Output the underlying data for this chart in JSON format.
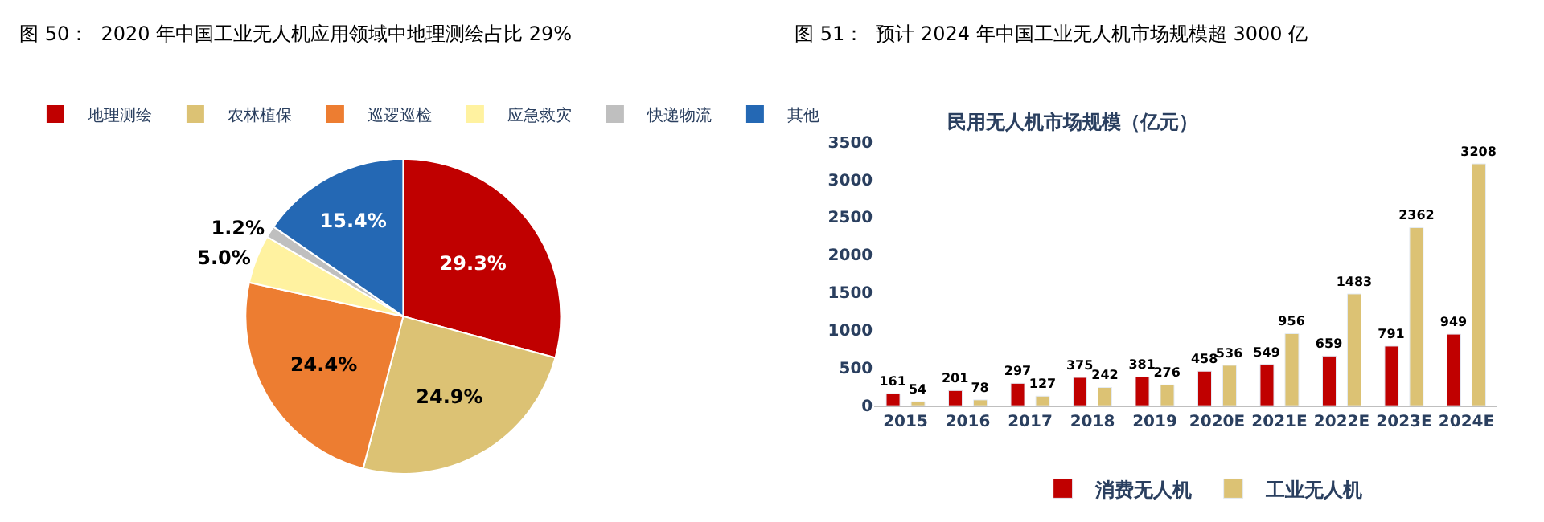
{
  "chart_data": [
    {
      "type": "pie",
      "title": "图 50：  2020 年中国工业无人机应用领域中地理测绘占比 29%",
      "categories": [
        "地理测绘",
        "农林植保",
        "巡逻巡检",
        "应急救灾",
        "快递物流",
        "其他"
      ],
      "values": [
        29.3,
        24.9,
        24.4,
        5.0,
        1.2,
        15.4
      ],
      "colors": [
        "#c00000",
        "#dcc274",
        "#ed7d31",
        "#fff2a0",
        "#bfbfbf",
        "#2468b4"
      ],
      "value_labels": [
        "29.3%",
        "24.9%",
        "24.4%",
        "5.0%",
        "1.2%",
        "15.4%"
      ],
      "legend": "top"
    },
    {
      "type": "bar",
      "title": "图 51：  预计 2024 年中国工业无人机市场规模超 3000 亿",
      "subtitle": "民用无人机市场规模（亿元）",
      "categories": [
        "2015",
        "2016",
        "2017",
        "2018",
        "2019",
        "2020E",
        "2021E",
        "2022E",
        "2023E",
        "2024E"
      ],
      "series": [
        {
          "name": "消费无人机",
          "color": "#c00000",
          "values": [
            161,
            201,
            297,
            375,
            381,
            458,
            549,
            659,
            791,
            949
          ]
        },
        {
          "name": "工业无人机",
          "color": "#dcc274",
          "values": [
            54,
            78,
            127,
            242,
            276,
            536,
            956,
            1483,
            2362,
            3208
          ]
        }
      ],
      "ylim": [
        0,
        3500
      ],
      "yticks": [
        0,
        500,
        1000,
        1500,
        2000,
        2500,
        3000,
        3500
      ],
      "data_labels": true,
      "legend": "bottom",
      "grid": false
    }
  ]
}
